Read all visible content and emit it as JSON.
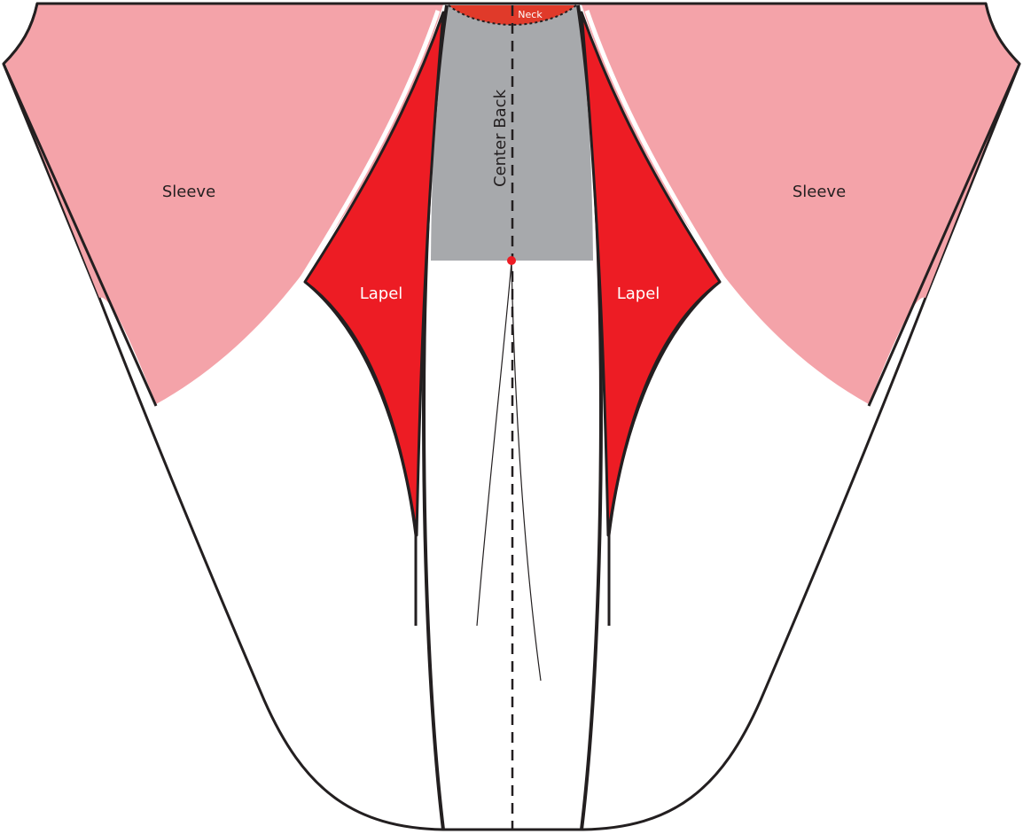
{
  "labels": {
    "neck": "Neck",
    "center_back": "Center Back",
    "sleeve_left": "Sleeve",
    "sleeve_right": "Sleeve",
    "lapel_left": "Lapel",
    "lapel_right": "Lapel"
  },
  "colors": {
    "background": "#ffffff",
    "outline": "#231f20",
    "sleeve_fill": "#f4a3a9",
    "lapel_fill": "#ed1c24",
    "center_back_fill": "#a7a9ac",
    "neck_fill": "#e03a2a",
    "marker": "#ed1c24",
    "label_light": "#ffffff",
    "label_dark": "#231f20"
  },
  "icons": {
    "pivot_point": "red-dot"
  }
}
